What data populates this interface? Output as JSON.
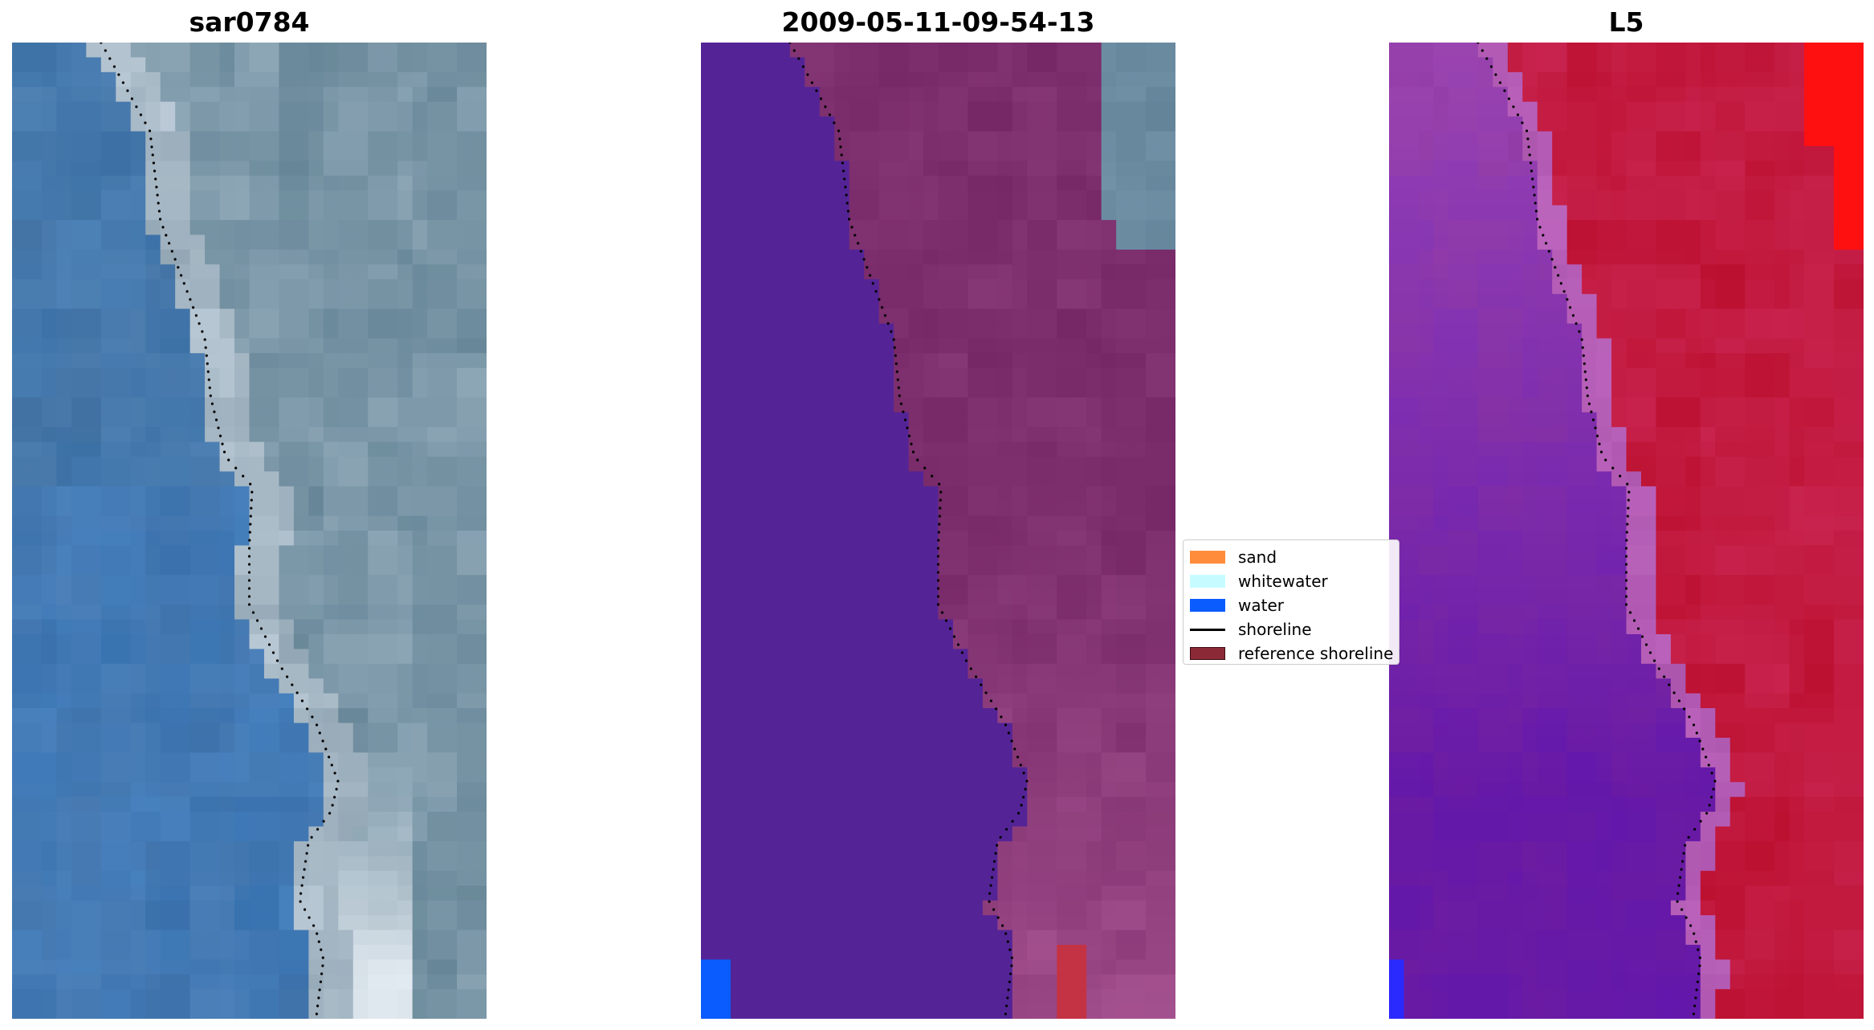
{
  "panels": [
    {
      "title": "sar0784",
      "kind": "rgb-satellite"
    },
    {
      "title": "2009-05-11-09-54-13",
      "kind": "classified"
    },
    {
      "title": "L5",
      "kind": "index"
    }
  ],
  "legend": {
    "items": [
      {
        "label": "sand",
        "color": "#ff8c3a",
        "type": "patch"
      },
      {
        "label": "whitewater",
        "color": "#c6fcff",
        "type": "patch"
      },
      {
        "label": "water",
        "color": "#0a5cff",
        "type": "patch"
      },
      {
        "label": "shoreline",
        "color": "#000000",
        "type": "line"
      },
      {
        "label": "reference shoreline",
        "color": "#8b2a36",
        "type": "patch"
      }
    ]
  },
  "colors": {
    "rgb_water": "#3f7ab8",
    "rgb_land": "#6f8fa0",
    "rgb_bright": "#e6edf3",
    "class_water": "#542497",
    "class_land": "#7b2d6c",
    "class_land_light": "#a04c8a",
    "class_gray": "#6a8aa0",
    "class_blue": "#0a5cff",
    "class_red": "#c33344",
    "index_low": "#5a0fa4",
    "index_mid": "#9a44b0",
    "index_high": "#c41838",
    "index_max": "#ff1010",
    "index_blue": "#2a2aff"
  }
}
